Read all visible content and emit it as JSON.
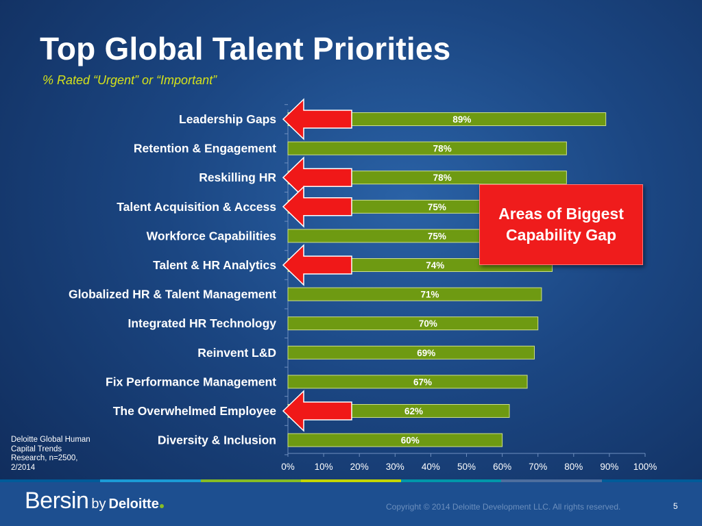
{
  "title": "Top Global Talent Priorities",
  "subtitle": "% Rated “Urgent” or “Important”",
  "chart_data": {
    "type": "bar",
    "orientation": "horizontal",
    "categories": [
      "Leadership Gaps",
      "Retention & Engagement",
      "Reskilling HR",
      "Talent Acquisition & Access",
      "Workforce Capabilities",
      "Talent & HR Analytics",
      "Globalized HR & Talent Management",
      "Integrated HR Technology",
      "Reinvent L&D",
      "Fix Performance Management",
      "The Overwhelmed Employee",
      "Diversity & Inclusion"
    ],
    "values": [
      89,
      78,
      78,
      75,
      75,
      74,
      71,
      70,
      69,
      67,
      62,
      60
    ],
    "value_labels": [
      "89%",
      "78%",
      "78%",
      "75%",
      "75%",
      "74%",
      "71%",
      "70%",
      "69%",
      "67%",
      "62%",
      "60%"
    ],
    "highlighted_categories": [
      "Leadership Gaps",
      "Reskilling HR",
      "Talent Acquisition & Access",
      "Talent & HR Analytics",
      "The Overwhelmed Employee"
    ],
    "x_ticks": [
      "0%",
      "10%",
      "20%",
      "30%",
      "40%",
      "50%",
      "60%",
      "70%",
      "80%",
      "90%",
      "100%"
    ],
    "xlim": [
      0,
      100
    ],
    "grid": false,
    "bar_color": "#6e9a12",
    "arrow_color": "#f01818"
  },
  "callout": {
    "line1": "Areas of Biggest",
    "line2": "Capability Gap"
  },
  "source_note": "Deloitte Global Human Capital Trends Research, n=2500, 2/2014",
  "footer": {
    "brand_name": "Bersin",
    "brand_by": "by",
    "brand_parent": "Deloitte",
    "copyright": "Copyright © 2014 Deloitte Development LLC. All rights reserved.",
    "page_number": "5"
  },
  "colors": {
    "title": "#ffffff",
    "subtitle": "#d6e21a",
    "callout_bg": "#ef1c1c",
    "footer_bg": "#1d4f90",
    "footer_stripe": [
      "#005b99",
      "#1b9bd6",
      "#86bc25",
      "#c4d600",
      "#0097a9",
      "#4d6e9e",
      "#005b99"
    ]
  }
}
